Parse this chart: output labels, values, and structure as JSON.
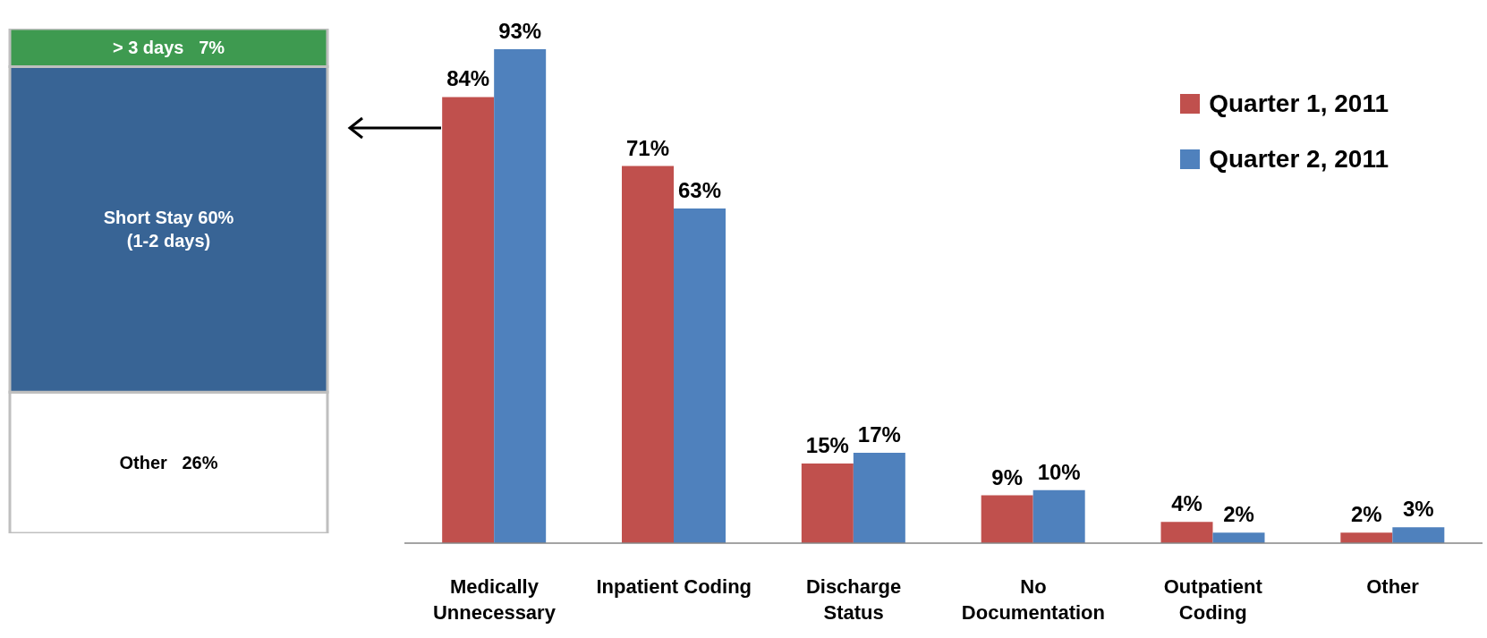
{
  "chart_data": [
    {
      "type": "bar",
      "stacked": true,
      "categories": [
        null
      ],
      "ylim": [
        0,
        93
      ],
      "tick_labels": false,
      "series": [
        {
          "color": "#ffffff",
          "values": [
            26
          ],
          "value_labels": [
            "Other   26%"
          ]
        },
        {
          "color": "#386495",
          "values": [
            60
          ],
          "value_labels": [
            "Short Stay 60%\n(1-2 days)"
          ]
        },
        {
          "color": "#3e9a50",
          "values": [
            7
          ],
          "value_labels": [
            "> 3 days   7%"
          ]
        }
      ]
    },
    {
      "type": "bar",
      "categories": [
        "Medically\nUnnecessary",
        "Inpatient Coding",
        "Discharge\nStatus",
        "No\nDocumentation",
        "Outpatient\nCoding",
        "Other"
      ],
      "tick_labels": "x",
      "legend": "top right",
      "series": [
        {
          "name": "Quarter 1, 2011",
          "color": "#c0504d",
          "values": [
            84,
            71,
            15,
            9,
            4,
            2
          ],
          "value_labels": [
            "84%",
            "71%",
            "15%",
            "9%",
            "4%",
            "2%"
          ]
        },
        {
          "name": "Quarter 2, 2011",
          "color": "#4f81bd",
          "values": [
            93,
            63,
            17,
            10,
            2,
            3
          ],
          "value_labels": [
            "93%",
            "63%",
            "17%",
            "10%",
            "2%",
            "3%"
          ]
        }
      ]
    }
  ]
}
